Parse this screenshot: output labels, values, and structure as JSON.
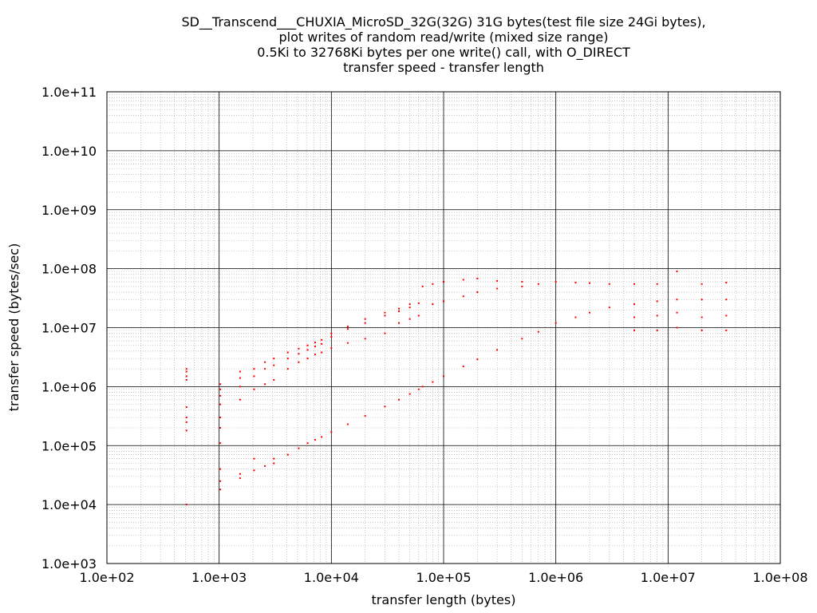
{
  "chart_data": {
    "type": "scatter",
    "title": [
      "SD__Transcend___CHUXIA_MicroSD_32G(32G) 31G bytes(test file size 24Gi bytes),",
      "plot writes of random read/write (mixed size range)",
      "0.5Ki to 32768Ki bytes per one write() call, with O_DIRECT",
      "transfer speed - transfer length"
    ],
    "xlabel": "transfer length (bytes)",
    "ylabel": "transfer speed (bytes/sec)",
    "x_scale": "log",
    "y_scale": "log",
    "xlim": [
      100,
      100000000
    ],
    "ylim": [
      1000,
      100000000000
    ],
    "x_ticks": [
      "1.0e+02",
      "1.0e+03",
      "1.0e+04",
      "1.0e+05",
      "1.0e+06",
      "1.0e+07",
      "1.0e+08"
    ],
    "y_ticks": [
      "1.0e+03",
      "1.0e+04",
      "1.0e+05",
      "1.0e+06",
      "1.0e+07",
      "1.0e+08",
      "1.0e+09",
      "1.0e+10",
      "1.0e+11"
    ],
    "grid": true,
    "marker_color": "#ff0000",
    "series": [
      {
        "points": [
          [
            512,
            10000
          ],
          [
            512,
            180000
          ],
          [
            512,
            250000
          ],
          [
            512,
            300000
          ],
          [
            512,
            450000
          ],
          [
            512,
            1300000
          ],
          [
            512,
            1500000
          ],
          [
            512,
            1800000
          ],
          [
            512,
            2000000
          ],
          [
            1024,
            18000
          ],
          [
            1024,
            25000
          ],
          [
            1024,
            40000
          ],
          [
            1024,
            110000
          ],
          [
            1024,
            200000
          ],
          [
            1024,
            300000
          ],
          [
            1024,
            500000
          ],
          [
            1024,
            700000
          ],
          [
            1024,
            900000
          ],
          [
            1024,
            1100000
          ],
          [
            1536,
            28000
          ],
          [
            1536,
            33000
          ],
          [
            1536,
            600000
          ],
          [
            1536,
            1000000
          ],
          [
            1536,
            1400000
          ],
          [
            1536,
            1800000
          ],
          [
            2048,
            38000
          ],
          [
            2048,
            60000
          ],
          [
            2048,
            900000
          ],
          [
            2048,
            1500000
          ],
          [
            2048,
            2000000
          ],
          [
            2560,
            45000
          ],
          [
            2560,
            1100000
          ],
          [
            2560,
            2000000
          ],
          [
            2560,
            2600000
          ],
          [
            3072,
            50000
          ],
          [
            3072,
            60000
          ],
          [
            3072,
            1300000
          ],
          [
            3072,
            2300000
          ],
          [
            3072,
            3000000
          ],
          [
            4096,
            70000
          ],
          [
            4096,
            2000000
          ],
          [
            4096,
            3000000
          ],
          [
            4096,
            3800000
          ],
          [
            5120,
            90000
          ],
          [
            5120,
            2600000
          ],
          [
            5120,
            3600000
          ],
          [
            5120,
            4400000
          ],
          [
            6144,
            110000
          ],
          [
            6144,
            3000000
          ],
          [
            6144,
            4200000
          ],
          [
            6144,
            5000000
          ],
          [
            7168,
            125000
          ],
          [
            7168,
            3500000
          ],
          [
            7168,
            4800000
          ],
          [
            7168,
            5600000
          ],
          [
            8192,
            140000
          ],
          [
            8192,
            3800000
          ],
          [
            8192,
            5300000
          ],
          [
            8192,
            6200000
          ],
          [
            10000,
            170000
          ],
          [
            10000,
            4500000
          ],
          [
            10000,
            7000000
          ],
          [
            10000,
            8000000
          ],
          [
            14000,
            230000
          ],
          [
            14000,
            5500000
          ],
          [
            14000,
            9500000
          ],
          [
            14000,
            10500000
          ],
          [
            20000,
            320000
          ],
          [
            20000,
            6500000
          ],
          [
            20000,
            12000000
          ],
          [
            20000,
            14000000
          ],
          [
            30000,
            460000
          ],
          [
            30000,
            8000000
          ],
          [
            30000,
            16000000
          ],
          [
            30000,
            18000000
          ],
          [
            40000,
            600000
          ],
          [
            40000,
            12000000
          ],
          [
            40000,
            19000000
          ],
          [
            40000,
            21000000
          ],
          [
            50000,
            750000
          ],
          [
            50000,
            14000000
          ],
          [
            50000,
            22000000
          ],
          [
            50000,
            25000000
          ],
          [
            60000,
            900000
          ],
          [
            60000,
            16000000
          ],
          [
            60000,
            26000000
          ],
          [
            65000,
            1000000
          ],
          [
            65000,
            50000000
          ],
          [
            80000,
            1200000
          ],
          [
            80000,
            25000000
          ],
          [
            80000,
            55000000
          ],
          [
            100000,
            1500000
          ],
          [
            100000,
            28000000
          ],
          [
            100000,
            60000000
          ],
          [
            150000,
            2200000
          ],
          [
            150000,
            34000000
          ],
          [
            150000,
            65000000
          ],
          [
            200000,
            2900000
          ],
          [
            200000,
            40000000
          ],
          [
            200000,
            68000000
          ],
          [
            300000,
            4200000
          ],
          [
            300000,
            46000000
          ],
          [
            300000,
            62000000
          ],
          [
            500000,
            6500000
          ],
          [
            500000,
            50000000
          ],
          [
            500000,
            60000000
          ],
          [
            700000,
            8500000
          ],
          [
            700000,
            55000000
          ],
          [
            1000000,
            12000000
          ],
          [
            1000000,
            60000000
          ],
          [
            1500000,
            15000000
          ],
          [
            1500000,
            58000000
          ],
          [
            2000000,
            18000000
          ],
          [
            2000000,
            57000000
          ],
          [
            3000000,
            22000000
          ],
          [
            3000000,
            55000000
          ],
          [
            5000000,
            9000000
          ],
          [
            5000000,
            15000000
          ],
          [
            5000000,
            25000000
          ],
          [
            5000000,
            55000000
          ],
          [
            8000000,
            9000000
          ],
          [
            8000000,
            16000000
          ],
          [
            8000000,
            28000000
          ],
          [
            8000000,
            55000000
          ],
          [
            12000000,
            10000000
          ],
          [
            12000000,
            18000000
          ],
          [
            12000000,
            30000000
          ],
          [
            12000000,
            90000000
          ],
          [
            20000000,
            9000000
          ],
          [
            20000000,
            15000000
          ],
          [
            20000000,
            30000000
          ],
          [
            20000000,
            55000000
          ],
          [
            33000000,
            9000000
          ],
          [
            33000000,
            16000000
          ],
          [
            33000000,
            30000000
          ],
          [
            33000000,
            58000000
          ]
        ]
      }
    ]
  }
}
